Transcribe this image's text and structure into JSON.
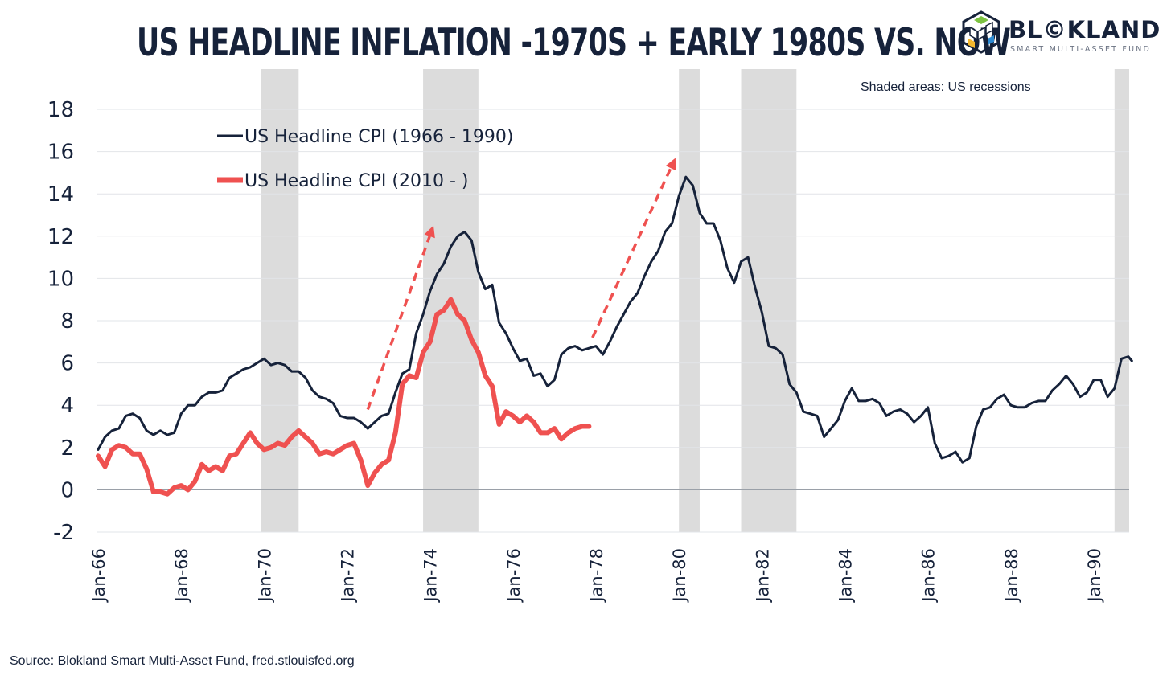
{
  "header": {
    "title": "US HEADLINE INFLATION -1970S + EARLY 1980S VS. NOW",
    "logo_name": "BL©KLAND",
    "logo_tagline": "SMART MULTI-ASSET FUND"
  },
  "recession_note": "Shaded areas: US recessions",
  "source": "Source: Blokland Smart Multi-Asset Fund, fred.stlouisfed.org",
  "colors": {
    "series_1970s": "#16223a",
    "series_now": "#ef5150",
    "recession": "#dcdcdc",
    "text": "#16223a"
  },
  "chart_data": {
    "type": "line",
    "title": "US HEADLINE INFLATION -1970S + EARLY 1980S VS. NOW",
    "xlabel": "",
    "ylabel": "",
    "xlim": [
      "1966-01",
      "1990-12"
    ],
    "ylim": [
      -2,
      18
    ],
    "y_ticks": [
      "18",
      "16",
      "14",
      "12",
      "10",
      "8",
      "6",
      "4",
      "2",
      "0",
      "-2"
    ],
    "y_tick_values": [
      18,
      16,
      14,
      12,
      10,
      8,
      6,
      4,
      2,
      0,
      -2
    ],
    "x_ticks": [
      "Jan-66",
      "Jan-68",
      "Jan-70",
      "Jan-72",
      "Jan-74",
      "Jan-76",
      "Jan-78",
      "Jan-80",
      "Jan-82",
      "Jan-84",
      "Jan-86",
      "Jan-88",
      "Jan-90"
    ],
    "x_tick_dates": [
      "1966-01",
      "1968-01",
      "1970-01",
      "1972-01",
      "1974-01",
      "1976-01",
      "1978-01",
      "1980-01",
      "1982-01",
      "1984-01",
      "1986-01",
      "1988-01",
      "1990-01"
    ],
    "grid": true,
    "legend_position": "top-left",
    "recessions": [
      {
        "start": "1969-12",
        "end": "1970-11"
      },
      {
        "start": "1973-11",
        "end": "1975-03"
      },
      {
        "start": "1980-01",
        "end": "1980-07"
      },
      {
        "start": "1981-07",
        "end": "1982-11"
      },
      {
        "start": "1990-07",
        "end": "1991-03"
      }
    ],
    "annotations": [
      {
        "type": "dashed-arrow",
        "from": {
          "x": "1972-07",
          "y": 3.8
        },
        "to": {
          "x": "1974-02",
          "y": 12.5
        }
      },
      {
        "type": "dashed-arrow",
        "from": {
          "x": "1977-12",
          "y": 7.2
        },
        "to": {
          "x": "1979-12",
          "y": 15.7
        }
      }
    ],
    "series": [
      {
        "name": "US Headline CPI (1966 - 1990)",
        "color": "#16223a",
        "points": [
          [
            "1966-01",
            1.9
          ],
          [
            "1966-03",
            2.5
          ],
          [
            "1966-05",
            2.8
          ],
          [
            "1966-07",
            2.9
          ],
          [
            "1966-09",
            3.5
          ],
          [
            "1966-11",
            3.6
          ],
          [
            "1967-01",
            3.4
          ],
          [
            "1967-03",
            2.8
          ],
          [
            "1967-05",
            2.6
          ],
          [
            "1967-07",
            2.8
          ],
          [
            "1967-09",
            2.6
          ],
          [
            "1967-11",
            2.7
          ],
          [
            "1968-01",
            3.6
          ],
          [
            "1968-03",
            4.0
          ],
          [
            "1968-05",
            4.0
          ],
          [
            "1968-07",
            4.4
          ],
          [
            "1968-09",
            4.6
          ],
          [
            "1968-11",
            4.6
          ],
          [
            "1969-01",
            4.7
          ],
          [
            "1969-03",
            5.3
          ],
          [
            "1969-05",
            5.5
          ],
          [
            "1969-07",
            5.7
          ],
          [
            "1969-09",
            5.8
          ],
          [
            "1969-11",
            6.0
          ],
          [
            "1970-01",
            6.2
          ],
          [
            "1970-03",
            5.9
          ],
          [
            "1970-05",
            6.0
          ],
          [
            "1970-07",
            5.9
          ],
          [
            "1970-09",
            5.6
          ],
          [
            "1970-11",
            5.6
          ],
          [
            "1971-01",
            5.3
          ],
          [
            "1971-03",
            4.7
          ],
          [
            "1971-05",
            4.4
          ],
          [
            "1971-07",
            4.3
          ],
          [
            "1971-09",
            4.1
          ],
          [
            "1971-11",
            3.5
          ],
          [
            "1972-01",
            3.4
          ],
          [
            "1972-03",
            3.4
          ],
          [
            "1972-05",
            3.2
          ],
          [
            "1972-07",
            2.9
          ],
          [
            "1972-09",
            3.2
          ],
          [
            "1972-11",
            3.5
          ],
          [
            "1973-01",
            3.6
          ],
          [
            "1973-03",
            4.6
          ],
          [
            "1973-05",
            5.5
          ],
          [
            "1973-07",
            5.7
          ],
          [
            "1973-09",
            7.4
          ],
          [
            "1973-11",
            8.3
          ],
          [
            "1974-01",
            9.4
          ],
          [
            "1974-03",
            10.2
          ],
          [
            "1974-05",
            10.7
          ],
          [
            "1974-07",
            11.5
          ],
          [
            "1974-09",
            12.0
          ],
          [
            "1974-11",
            12.2
          ],
          [
            "1975-01",
            11.8
          ],
          [
            "1975-03",
            10.3
          ],
          [
            "1975-05",
            9.5
          ],
          [
            "1975-07",
            9.7
          ],
          [
            "1975-09",
            7.9
          ],
          [
            "1975-11",
            7.4
          ],
          [
            "1976-01",
            6.7
          ],
          [
            "1976-03",
            6.1
          ],
          [
            "1976-05",
            6.2
          ],
          [
            "1976-07",
            5.4
          ],
          [
            "1976-09",
            5.5
          ],
          [
            "1976-11",
            4.9
          ],
          [
            "1977-01",
            5.2
          ],
          [
            "1977-03",
            6.4
          ],
          [
            "1977-05",
            6.7
          ],
          [
            "1977-07",
            6.8
          ],
          [
            "1977-09",
            6.6
          ],
          [
            "1977-11",
            6.7
          ],
          [
            "1978-01",
            6.8
          ],
          [
            "1978-03",
            6.4
          ],
          [
            "1978-05",
            7.0
          ],
          [
            "1978-07",
            7.7
          ],
          [
            "1978-09",
            8.3
          ],
          [
            "1978-11",
            8.9
          ],
          [
            "1979-01",
            9.3
          ],
          [
            "1979-03",
            10.1
          ],
          [
            "1979-05",
            10.8
          ],
          [
            "1979-07",
            11.3
          ],
          [
            "1979-09",
            12.2
          ],
          [
            "1979-11",
            12.6
          ],
          [
            "1980-01",
            13.9
          ],
          [
            "1980-03",
            14.8
          ],
          [
            "1980-05",
            14.4
          ],
          [
            "1980-07",
            13.1
          ],
          [
            "1980-09",
            12.6
          ],
          [
            "1980-11",
            12.6
          ],
          [
            "1981-01",
            11.8
          ],
          [
            "1981-03",
            10.5
          ],
          [
            "1981-05",
            9.8
          ],
          [
            "1981-07",
            10.8
          ],
          [
            "1981-09",
            11.0
          ],
          [
            "1981-11",
            9.6
          ],
          [
            "1982-01",
            8.4
          ],
          [
            "1982-03",
            6.8
          ],
          [
            "1982-05",
            6.7
          ],
          [
            "1982-07",
            6.4
          ],
          [
            "1982-09",
            5.0
          ],
          [
            "1982-11",
            4.6
          ],
          [
            "1983-01",
            3.7
          ],
          [
            "1983-03",
            3.6
          ],
          [
            "1983-05",
            3.5
          ],
          [
            "1983-07",
            2.5
          ],
          [
            "1983-09",
            2.9
          ],
          [
            "1983-11",
            3.3
          ],
          [
            "1984-01",
            4.2
          ],
          [
            "1984-03",
            4.8
          ],
          [
            "1984-05",
            4.2
          ],
          [
            "1984-07",
            4.2
          ],
          [
            "1984-09",
            4.3
          ],
          [
            "1984-11",
            4.1
          ],
          [
            "1985-01",
            3.5
          ],
          [
            "1985-03",
            3.7
          ],
          [
            "1985-05",
            3.8
          ],
          [
            "1985-07",
            3.6
          ],
          [
            "1985-09",
            3.2
          ],
          [
            "1985-11",
            3.5
          ],
          [
            "1986-01",
            3.9
          ],
          [
            "1986-03",
            2.2
          ],
          [
            "1986-05",
            1.5
          ],
          [
            "1986-07",
            1.6
          ],
          [
            "1986-09",
            1.8
          ],
          [
            "1986-11",
            1.3
          ],
          [
            "1987-01",
            1.5
          ],
          [
            "1987-03",
            3.0
          ],
          [
            "1987-05",
            3.8
          ],
          [
            "1987-07",
            3.9
          ],
          [
            "1987-09",
            4.3
          ],
          [
            "1987-11",
            4.5
          ],
          [
            "1988-01",
            4.0
          ],
          [
            "1988-03",
            3.9
          ],
          [
            "1988-05",
            3.9
          ],
          [
            "1988-07",
            4.1
          ],
          [
            "1988-09",
            4.2
          ],
          [
            "1988-11",
            4.2
          ],
          [
            "1989-01",
            4.7
          ],
          [
            "1989-03",
            5.0
          ],
          [
            "1989-05",
            5.4
          ],
          [
            "1989-07",
            5.0
          ],
          [
            "1989-09",
            4.4
          ],
          [
            "1989-11",
            4.6
          ],
          [
            "1990-01",
            5.2
          ],
          [
            "1990-03",
            5.2
          ],
          [
            "1990-05",
            4.4
          ],
          [
            "1990-07",
            4.8
          ],
          [
            "1990-09",
            6.2
          ],
          [
            "1990-11",
            6.3
          ],
          [
            "1990-12",
            6.1
          ]
        ]
      },
      {
        "name": "US Headline CPI (2010 - )",
        "color": "#ef5150",
        "points": [
          [
            "1966-01",
            1.6
          ],
          [
            "1966-03",
            1.1
          ],
          [
            "1966-05",
            1.9
          ],
          [
            "1966-07",
            2.1
          ],
          [
            "1966-09",
            2.0
          ],
          [
            "1966-11",
            1.7
          ],
          [
            "1967-01",
            1.7
          ],
          [
            "1967-03",
            1.0
          ],
          [
            "1967-05",
            -0.1
          ],
          [
            "1967-07",
            -0.1
          ],
          [
            "1967-09",
            -0.2
          ],
          [
            "1967-11",
            0.1
          ],
          [
            "1968-01",
            0.2
          ],
          [
            "1968-03",
            0.0
          ],
          [
            "1968-05",
            0.4
          ],
          [
            "1968-07",
            1.2
          ],
          [
            "1968-09",
            0.9
          ],
          [
            "1968-11",
            1.1
          ],
          [
            "1969-01",
            0.9
          ],
          [
            "1969-03",
            1.6
          ],
          [
            "1969-05",
            1.7
          ],
          [
            "1969-07",
            2.2
          ],
          [
            "1969-09",
            2.7
          ],
          [
            "1969-11",
            2.2
          ],
          [
            "1970-01",
            1.9
          ],
          [
            "1970-03",
            2.0
          ],
          [
            "1970-05",
            2.2
          ],
          [
            "1970-07",
            2.1
          ],
          [
            "1970-09",
            2.5
          ],
          [
            "1970-11",
            2.8
          ],
          [
            "1971-01",
            2.5
          ],
          [
            "1971-03",
            2.2
          ],
          [
            "1971-05",
            1.7
          ],
          [
            "1971-07",
            1.8
          ],
          [
            "1971-09",
            1.7
          ],
          [
            "1971-11",
            1.9
          ],
          [
            "1972-01",
            2.1
          ],
          [
            "1972-03",
            2.2
          ],
          [
            "1972-05",
            1.4
          ],
          [
            "1972-07",
            0.2
          ],
          [
            "1972-09",
            0.8
          ],
          [
            "1972-11",
            1.2
          ],
          [
            "1973-01",
            1.4
          ],
          [
            "1973-03",
            2.7
          ],
          [
            "1973-05",
            5.0
          ],
          [
            "1973-07",
            5.4
          ],
          [
            "1973-09",
            5.3
          ],
          [
            "1973-11",
            6.5
          ],
          [
            "1974-01",
            7.0
          ],
          [
            "1974-03",
            8.3
          ],
          [
            "1974-05",
            8.5
          ],
          [
            "1974-07",
            9.0
          ],
          [
            "1974-09",
            8.3
          ],
          [
            "1974-11",
            8.0
          ],
          [
            "1975-01",
            7.1
          ],
          [
            "1975-03",
            6.5
          ],
          [
            "1975-05",
            5.4
          ],
          [
            "1975-07",
            4.9
          ],
          [
            "1975-09",
            3.1
          ],
          [
            "1975-11",
            3.7
          ],
          [
            "1976-01",
            3.5
          ],
          [
            "1976-03",
            3.2
          ],
          [
            "1976-05",
            3.5
          ],
          [
            "1976-07",
            3.2
          ],
          [
            "1976-09",
            2.7
          ],
          [
            "1976-11",
            2.7
          ],
          [
            "1977-01",
            2.9
          ],
          [
            "1977-03",
            2.4
          ],
          [
            "1977-05",
            2.7
          ],
          [
            "1977-07",
            2.9
          ],
          [
            "1977-09",
            3.0
          ],
          [
            "1977-11",
            3.0
          ]
        ]
      }
    ]
  }
}
